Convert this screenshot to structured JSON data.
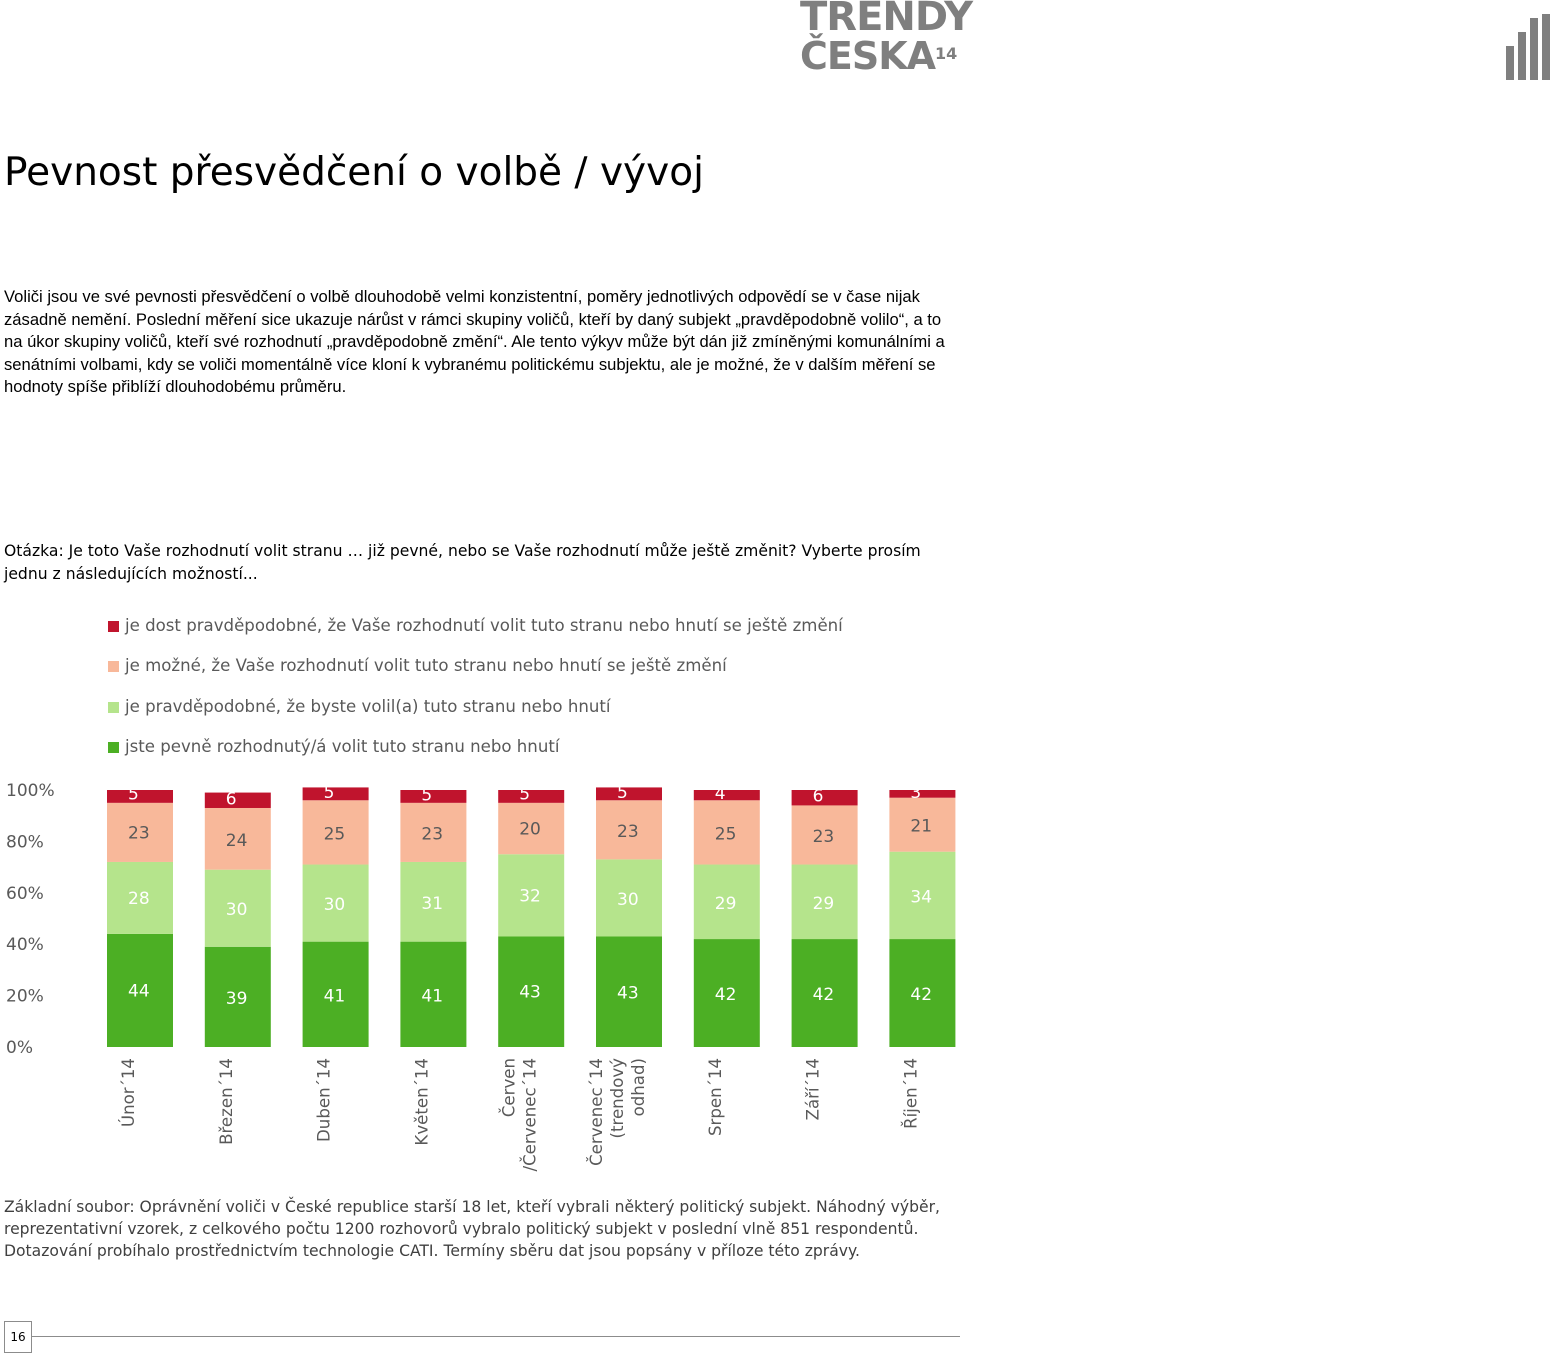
{
  "logo": {
    "line1": "TRENDY",
    "line2": "ČESKA",
    "year": "14"
  },
  "title": "Pevnost přesvědčení o volbě / vývoj",
  "intro": "Voliči jsou ve své pevnosti přesvědčení o volbě dlouhodobě velmi konzistentní, poměry jednotlivých odpovědí se v čase nijak zásadně nemění. Poslední měření sice ukazuje nárůst v rámci skupiny voličů, kteří by daný subjekt „pravděpodobně volilo“, a to na úkor skupiny voličů, kteří své rozhodnutí „pravděpodobně změní“. Ale tento výkyv může být dán již zmíněnými komunálními a senátními volbami, kdy se voliči momentálně více  kloní k vybranému politickému subjektu, ale je možné, že v dalším měření se hodnoty spíše přiblíží dlouhodobému průměru.",
  "question": "Otázka: Je toto Vaše rozhodnutí volit stranu … již pevné, nebo se Vaše rozhodnutí může ještě změnit? Vyberte prosím jednu z následujících možností...",
  "colors": {
    "dost_pravdepodobne": "#c0142d",
    "mozne": "#f8b89a",
    "pravdepodobne": "#b5e48c",
    "pevne": "#4caf24",
    "axis_text": "#595959",
    "logo": "#7f7f7f"
  },
  "chart_data": {
    "type": "bar",
    "stacked": true,
    "percent_stacked": true,
    "categories": [
      "Únor´14",
      "Březen´14",
      "Duben´14",
      "Květen´14",
      "Červen /Červenec´14",
      "Červenec´14 (trendový odhad)",
      "Srpen´14",
      "Září´14",
      "Říjen´14"
    ],
    "series": [
      {
        "name": "jste pevně rozhodnutý/á volit tuto stranu nebo hnutí",
        "color": "#4caf24",
        "values": [
          44,
          39,
          41,
          41,
          43,
          43,
          42,
          42,
          42
        ]
      },
      {
        "name": "je pravděpodobné, že byste volil(a) tuto stranu nebo hnutí",
        "color": "#b5e48c",
        "values": [
          28,
          30,
          30,
          31,
          32,
          30,
          29,
          29,
          34
        ]
      },
      {
        "name": "je možné, že Vaše rozhodnutí volit tuto stranu nebo hnutí se ještě změní",
        "color": "#f8b89a",
        "values": [
          23,
          24,
          25,
          23,
          20,
          23,
          25,
          23,
          21
        ]
      },
      {
        "name": "je dost pravděpodobné, že Vaše rozhodnutí volit tuto stranu nebo hnutí se ještě změní",
        "color": "#c0142d",
        "values": [
          5,
          6,
          5,
          5,
          5,
          5,
          4,
          6,
          3
        ]
      }
    ],
    "legend": [
      {
        "label": "je dost pravděpodobné, že Vaše rozhodnutí volit tuto stranu nebo hnutí se ještě změní",
        "color": "#c0142d"
      },
      {
        "label": "je možné, že Vaše rozhodnutí volit tuto stranu nebo hnutí se ještě změní",
        "color": "#f8b89a"
      },
      {
        "label": "je pravděpodobné, že byste volil(a) tuto stranu nebo hnutí",
        "color": "#b5e48c"
      },
      {
        "label": "jste pevně rozhodnutý/á volit tuto stranu nebo hnutí",
        "color": "#4caf24"
      }
    ],
    "legend_position": "top",
    "yticks": [
      "100%",
      "80%",
      "60%",
      "40%",
      "20%",
      "0%"
    ],
    "ylim": [
      0,
      100
    ],
    "grid": false,
    "xlabel": "",
    "ylabel": ""
  },
  "footnote": "Základní soubor: Oprávnění voliči v České republice starší 18 let, kteří vybrali některý politický subjekt. Náhodný výběr, reprezentativní vzorek, z celkového počtu 1200 rozhovorů vybralo politický subjekt v poslední vlně 851 respondentů. Dotazování probíhalo prostřednictvím technologie CATI. Termíny sběru dat jsou popsány v příloze této zprávy.",
  "page_number": "16"
}
